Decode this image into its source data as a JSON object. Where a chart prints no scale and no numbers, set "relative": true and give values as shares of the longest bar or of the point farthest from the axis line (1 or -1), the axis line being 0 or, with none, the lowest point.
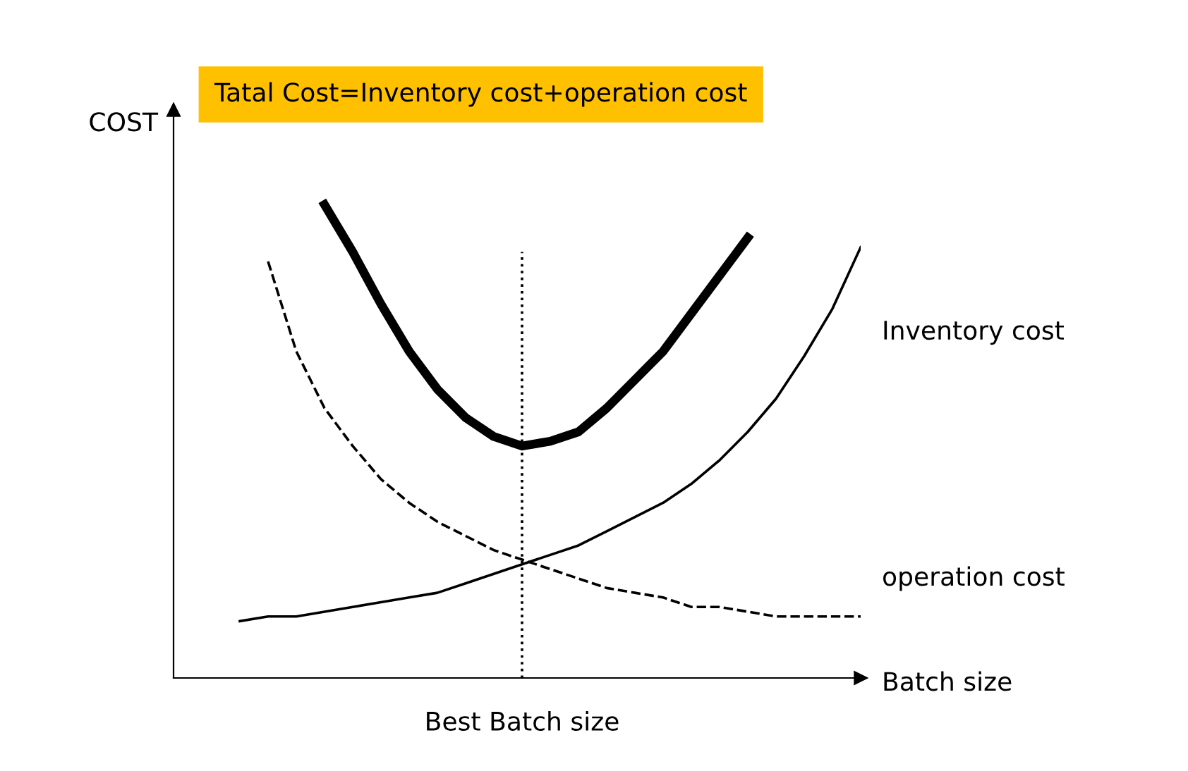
{
  "chart_data": {
    "type": "line",
    "relative": true,
    "title": "Tatal Cost=Inventory cost+operation cost",
    "xlabel": "Batch size",
    "ylabel": "COST",
    "legend": false,
    "grid": false,
    "marker": "none",
    "categories": [
      null,
      null,
      null,
      null,
      null,
      null,
      null,
      null,
      null,
      null,
      null,
      null,
      null,
      null,
      null,
      null,
      null,
      null,
      null,
      null,
      null,
      null,
      null
    ],
    "series": [
      {
        "color": "#000000",
        "line_style": "solid",
        "values": [
          null,
          null,
          null,
          1.0,
          0.9,
          0.79,
          0.69,
          0.61,
          0.55,
          0.51,
          0.49,
          0.5,
          0.52,
          0.57,
          0.63,
          0.69,
          0.77,
          0.85,
          0.93,
          null,
          null,
          null,
          null
        ]
      },
      {
        "name": "Inventory cost",
        "color": "#000000",
        "line_style": "solid",
        "values": [
          0.12,
          0.13,
          0.13,
          0.14,
          0.15,
          0.16,
          0.17,
          0.18,
          0.2,
          0.22,
          0.24,
          0.26,
          0.28,
          0.31,
          0.34,
          0.37,
          0.41,
          0.46,
          0.52,
          0.59,
          0.68,
          0.78,
          0.91
        ]
      },
      {
        "name": "operation cost",
        "color": "#000000",
        "line_style": "dashed",
        "values": [
          null,
          0.88,
          0.69,
          0.57,
          0.49,
          0.42,
          0.37,
          0.33,
          0.3,
          0.27,
          0.25,
          0.23,
          0.21,
          0.19,
          0.18,
          0.17,
          0.15,
          0.15,
          0.14,
          0.13,
          0.13,
          0.13,
          0.13
        ]
      }
    ],
    "annotations": [
      "Best Batch size"
    ]
  }
}
